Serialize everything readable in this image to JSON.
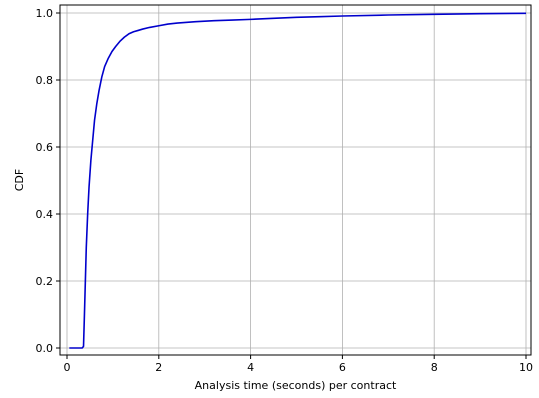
{
  "chart_data": {
    "type": "line",
    "title": "",
    "xlabel": "Analysis time (seconds) per contract",
    "ylabel": "CDF",
    "xlim": [
      0,
      10
    ],
    "ylim": [
      0,
      1.0
    ],
    "x_ticks": [
      0,
      2,
      4,
      6,
      8,
      10
    ],
    "y_ticks": [
      0.0,
      0.2,
      0.4,
      0.6,
      0.8,
      1.0
    ],
    "x_tick_labels": [
      "0",
      "2",
      "4",
      "6",
      "8",
      "10"
    ],
    "y_tick_labels": [
      "0.0",
      "0.2",
      "0.4",
      "0.6",
      "0.8",
      "1.0"
    ],
    "grid": true,
    "legend": "none",
    "series": [
      {
        "color": "#0000cc",
        "x": [
          0.05,
          0.33,
          0.36,
          0.38,
          0.4,
          0.42,
          0.45,
          0.48,
          0.52,
          0.56,
          0.6,
          0.65,
          0.7,
          0.76,
          0.82,
          0.9,
          0.98,
          1.06,
          1.15,
          1.25,
          1.35,
          1.45,
          1.55,
          1.65,
          1.8,
          2.0,
          2.2,
          2.4,
          2.8,
          3.2,
          3.6,
          4.0,
          4.5,
          5.0,
          5.5,
          6.0,
          7.0,
          8.0,
          9.0,
          10.0
        ],
        "y": [
          0.0,
          0.0,
          0.005,
          0.1,
          0.2,
          0.3,
          0.4,
          0.48,
          0.56,
          0.62,
          0.68,
          0.73,
          0.77,
          0.81,
          0.84,
          0.865,
          0.885,
          0.9,
          0.915,
          0.928,
          0.938,
          0.944,
          0.948,
          0.952,
          0.957,
          0.962,
          0.967,
          0.97,
          0.974,
          0.977,
          0.979,
          0.981,
          0.984,
          0.987,
          0.989,
          0.991,
          0.994,
          0.996,
          0.998,
          0.999
        ]
      }
    ]
  }
}
